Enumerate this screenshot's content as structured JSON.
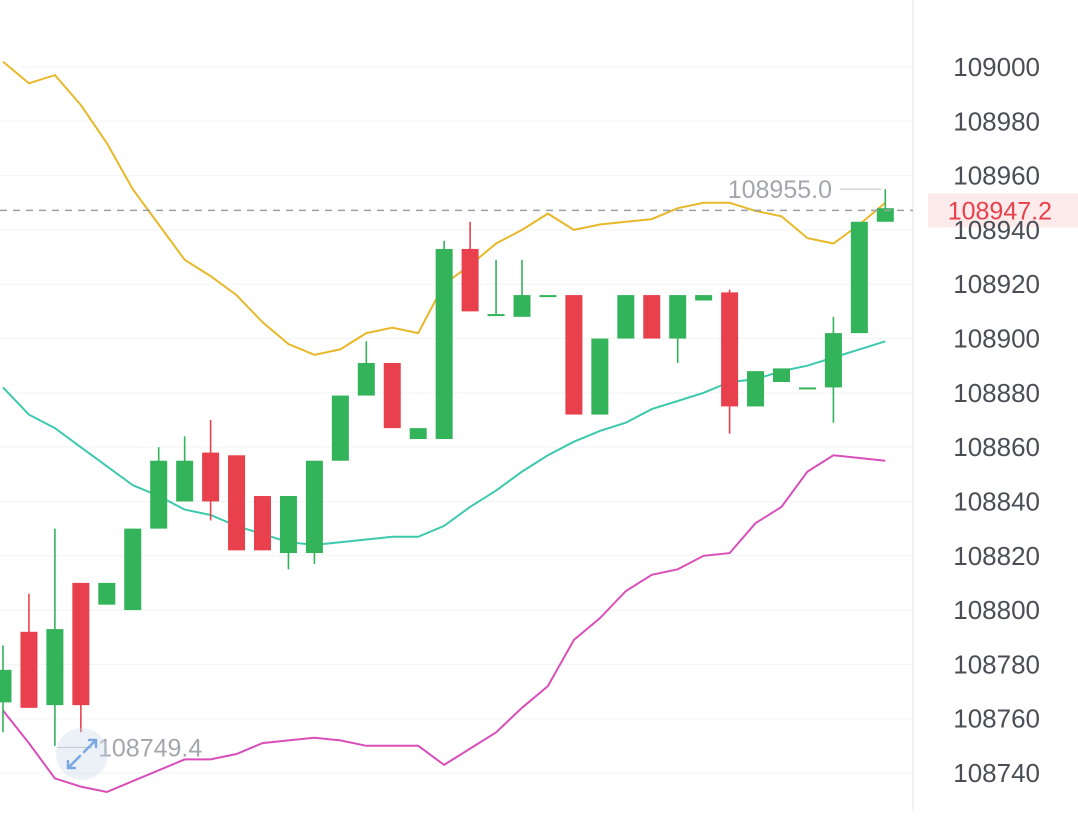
{
  "chart_data": {
    "type": "candlestick",
    "y_axis": {
      "ticks": [
        "109000",
        "108980",
        "108960",
        "108940",
        "108920",
        "108900",
        "108880",
        "108860",
        "108840",
        "108820",
        "108800",
        "108780",
        "108760",
        "108740"
      ],
      "range": [
        108732,
        109022
      ],
      "position": "right"
    },
    "grid": true,
    "current_price": {
      "value": 108947.2,
      "label": "108947.2",
      "color": "#e8414d"
    },
    "high_marker": {
      "value": 108955.0,
      "label": "108955.0"
    },
    "low_marker": {
      "value": 108749.4,
      "label": "108749.4"
    },
    "candles": [
      {
        "open": 108766,
        "close": 108778,
        "high": 108787,
        "low": 108755
      },
      {
        "open": 108792,
        "close": 108764,
        "high": 108806,
        "low": 108764
      },
      {
        "open": 108765,
        "close": 108793,
        "high": 108830,
        "low": 108750
      },
      {
        "open": 108810,
        "close": 108765,
        "high": 108810,
        "low": 108755
      },
      {
        "open": 108802,
        "close": 108810,
        "high": 108810,
        "low": 108802
      },
      {
        "open": 108800,
        "close": 108830,
        "high": 108830,
        "low": 108800
      },
      {
        "open": 108830,
        "close": 108855,
        "high": 108860,
        "low": 108830
      },
      {
        "open": 108840,
        "close": 108855,
        "high": 108864,
        "low": 108840
      },
      {
        "open": 108858,
        "close": 108840,
        "high": 108870,
        "low": 108833
      },
      {
        "open": 108857,
        "close": 108822,
        "high": 108857,
        "low": 108822
      },
      {
        "open": 108842,
        "close": 108822,
        "high": 108842,
        "low": 108822
      },
      {
        "open": 108821,
        "close": 108842,
        "high": 108842,
        "low": 108815
      },
      {
        "open": 108821,
        "close": 108855,
        "high": 108855,
        "low": 108817
      },
      {
        "open": 108855,
        "close": 108879,
        "high": 108879,
        "low": 108855
      },
      {
        "open": 108879,
        "close": 108891,
        "high": 108899,
        "low": 108879
      },
      {
        "open": 108891,
        "close": 108867,
        "high": 108891,
        "low": 108867
      },
      {
        "open": 108863,
        "close": 108867,
        "high": 108867,
        "low": 108863
      },
      {
        "open": 108863,
        "close": 108933,
        "high": 108936,
        "low": 108863
      },
      {
        "open": 108933,
        "close": 108910,
        "high": 108943,
        "low": 108910
      },
      {
        "open": 108909,
        "close": 108909,
        "high": 108929,
        "low": 108909
      },
      {
        "open": 108908,
        "close": 108916,
        "high": 108929,
        "low": 108908
      },
      {
        "open": 108916,
        "close": 108916,
        "high": 108916,
        "low": 108916
      },
      {
        "open": 108916,
        "close": 108872,
        "high": 108916,
        "low": 108872
      },
      {
        "open": 108872,
        "close": 108900,
        "high": 108900,
        "low": 108872
      },
      {
        "open": 108900,
        "close": 108916,
        "high": 108916,
        "low": 108900
      },
      {
        "open": 108916,
        "close": 108900,
        "high": 108916,
        "low": 108900
      },
      {
        "open": 108900,
        "close": 108916,
        "high": 108916,
        "low": 108891
      },
      {
        "open": 108914,
        "close": 108916,
        "high": 108916,
        "low": 108914
      },
      {
        "open": 108917,
        "close": 108875,
        "high": 108918,
        "low": 108865
      },
      {
        "open": 108875,
        "close": 108888,
        "high": 108888,
        "low": 108875
      },
      {
        "open": 108884,
        "close": 108889,
        "high": 108889,
        "low": 108884
      },
      {
        "open": 108882,
        "close": 108882,
        "high": 108882,
        "low": 108882
      },
      {
        "open": 108882,
        "close": 108902,
        "high": 108908,
        "low": 108869
      },
      {
        "open": 108902,
        "close": 108943,
        "high": 108943,
        "low": 108902
      },
      {
        "open": 108943,
        "close": 108948,
        "high": 108955,
        "low": 108943
      }
    ],
    "series": [
      {
        "color": "#e8b82a",
        "values": [
          109002,
          108994,
          108997,
          108986,
          108972,
          108955,
          108942,
          108929,
          108923,
          108916,
          108906,
          108898,
          108894,
          108896,
          108902,
          108904,
          108902,
          108920,
          108927,
          108935,
          108940,
          108946,
          108940,
          108942,
          108943,
          108944,
          108948,
          108950,
          108950,
          108947,
          108945,
          108937,
          108935,
          108942,
          108950
        ]
      },
      {
        "color": "#3cc9ae",
        "values": [
          108882,
          108872,
          108867,
          108860,
          108853,
          108846,
          108842,
          108837,
          108835,
          108831,
          108828,
          108825,
          108824,
          108825,
          108826,
          108827,
          108827,
          108831,
          108838,
          108844,
          108851,
          108857,
          108862,
          108866,
          108869,
          108874,
          108877,
          108880,
          108884,
          108885,
          108888,
          108890,
          108893,
          108896,
          108899
        ]
      },
      {
        "color": "#d94fb9",
        "values": [
          108763,
          108751,
          108738,
          108735,
          108733,
          108737,
          108741,
          108745,
          108745,
          108747,
          108751,
          108752,
          108753,
          108752,
          108750,
          108750,
          108750,
          108743,
          108749,
          108755,
          108764,
          108772,
          108789,
          108797,
          108807,
          108813,
          108815,
          108820,
          108821,
          108832,
          108838,
          108851,
          108857,
          108856,
          108855
        ]
      }
    ]
  }
}
